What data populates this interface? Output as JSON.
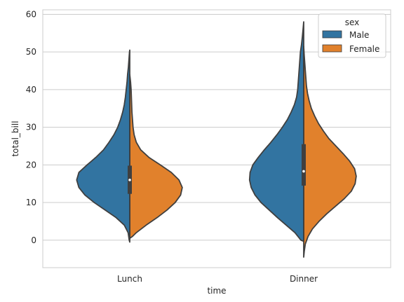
{
  "chart_data": {
    "type": "violin",
    "split": true,
    "xlabel": "time",
    "ylabel": "total_bill",
    "categories": [
      "Lunch",
      "Dinner"
    ],
    "ylim": [
      -7.3,
      61.2
    ],
    "yticks": [
      0,
      10,
      20,
      30,
      40,
      50,
      60
    ],
    "grid": true,
    "legend": {
      "title": "sex",
      "position": "top-right",
      "entries": [
        "Male",
        "Female"
      ]
    },
    "series": [
      {
        "name": "Male",
        "color": "#3274a1",
        "side": "left",
        "profiles": [
          {
            "category": "Lunch",
            "y_min": -0.5,
            "y_max": 50.5,
            "density": [
              [
                -0.5,
                0.0
              ],
              [
                0,
                0.01
              ],
              [
                2,
                0.03
              ],
              [
                4,
                0.1
              ],
              [
                6,
                0.25
              ],
              [
                8,
                0.45
              ],
              [
                10,
                0.65
              ],
              [
                12,
                0.82
              ],
              [
                14,
                0.93
              ],
              [
                16,
                0.97
              ],
              [
                18,
                0.93
              ],
              [
                20,
                0.78
              ],
              [
                22,
                0.62
              ],
              [
                24,
                0.48
              ],
              [
                26,
                0.38
              ],
              [
                28,
                0.29
              ],
              [
                30,
                0.22
              ],
              [
                32,
                0.17
              ],
              [
                34,
                0.13
              ],
              [
                36,
                0.1
              ],
              [
                38,
                0.08
              ],
              [
                40,
                0.065
              ],
              [
                42,
                0.05
              ],
              [
                44,
                0.04
              ],
              [
                46,
                0.025
              ],
              [
                48,
                0.015
              ],
              [
                50,
                0.005
              ],
              [
                50.5,
                0.0
              ]
            ],
            "q1": 12.3,
            "median": 16.0,
            "q3": 19.8
          },
          {
            "category": "Dinner",
            "y_min": -0.3,
            "y_max": 58.0,
            "density": [
              [
                -0.3,
                0.0
              ],
              [
                0,
                0.05
              ],
              [
                2,
                0.16
              ],
              [
                4,
                0.32
              ],
              [
                6,
                0.48
              ],
              [
                8,
                0.63
              ],
              [
                10,
                0.78
              ],
              [
                12,
                0.89
              ],
              [
                14,
                0.96
              ],
              [
                16,
                0.99
              ],
              [
                18,
                0.98
              ],
              [
                20,
                0.93
              ],
              [
                22,
                0.83
              ],
              [
                24,
                0.72
              ],
              [
                26,
                0.6
              ],
              [
                28,
                0.49
              ],
              [
                30,
                0.39
              ],
              [
                32,
                0.3
              ],
              [
                34,
                0.23
              ],
              [
                36,
                0.17
              ],
              [
                38,
                0.13
              ],
              [
                40,
                0.11
              ],
              [
                42,
                0.1
              ],
              [
                44,
                0.09
              ],
              [
                46,
                0.08
              ],
              [
                48,
                0.07
              ],
              [
                50,
                0.06
              ],
              [
                52,
                0.04
              ],
              [
                54,
                0.025
              ],
              [
                56,
                0.012
              ],
              [
                58,
                0.0
              ]
            ],
            "q1": 14.5,
            "median": 18.3,
            "q3": 25.5
          }
        ]
      },
      {
        "name": "Female",
        "color": "#e1812c",
        "side": "right",
        "profiles": [
          {
            "category": "Lunch",
            "y_min": 0.5,
            "y_max": 44.0,
            "density": [
              [
                0.5,
                0.0
              ],
              [
                1,
                0.05
              ],
              [
                2,
                0.12
              ],
              [
                4,
                0.3
              ],
              [
                6,
                0.5
              ],
              [
                8,
                0.68
              ],
              [
                10,
                0.83
              ],
              [
                12,
                0.93
              ],
              [
                14,
                0.96
              ],
              [
                16,
                0.9
              ],
              [
                18,
                0.76
              ],
              [
                20,
                0.56
              ],
              [
                22,
                0.35
              ],
              [
                24,
                0.2
              ],
              [
                26,
                0.12
              ],
              [
                28,
                0.08
              ],
              [
                30,
                0.06
              ],
              [
                32,
                0.05
              ],
              [
                34,
                0.04
              ],
              [
                36,
                0.035
              ],
              [
                38,
                0.03
              ],
              [
                40,
                0.025
              ],
              [
                42,
                0.015
              ],
              [
                44,
                0.0
              ]
            ],
            "q1": 12.3,
            "median": 16.0,
            "q3": 19.8
          },
          {
            "category": "Dinner",
            "y_min": -4.5,
            "y_max": 51.5,
            "density": [
              [
                -4.5,
                0.0
              ],
              [
                -3,
                0.01
              ],
              [
                -1,
                0.03
              ],
              [
                1,
                0.08
              ],
              [
                3,
                0.16
              ],
              [
                5,
                0.28
              ],
              [
                7,
                0.42
              ],
              [
                9,
                0.58
              ],
              [
                11,
                0.74
              ],
              [
                13,
                0.87
              ],
              [
                15,
                0.94
              ],
              [
                17,
                0.96
              ],
              [
                19,
                0.93
              ],
              [
                21,
                0.84
              ],
              [
                23,
                0.72
              ],
              [
                25,
                0.59
              ],
              [
                27,
                0.46
              ],
              [
                29,
                0.36
              ],
              [
                31,
                0.27
              ],
              [
                33,
                0.2
              ],
              [
                35,
                0.14
              ],
              [
                37,
                0.1
              ],
              [
                39,
                0.07
              ],
              [
                41,
                0.05
              ],
              [
                43,
                0.04
              ],
              [
                45,
                0.03
              ],
              [
                47,
                0.02
              ],
              [
                49,
                0.01
              ],
              [
                51.5,
                0.0
              ]
            ],
            "q1": 14.5,
            "median": 18.3,
            "q3": 25.5
          }
        ]
      }
    ]
  }
}
